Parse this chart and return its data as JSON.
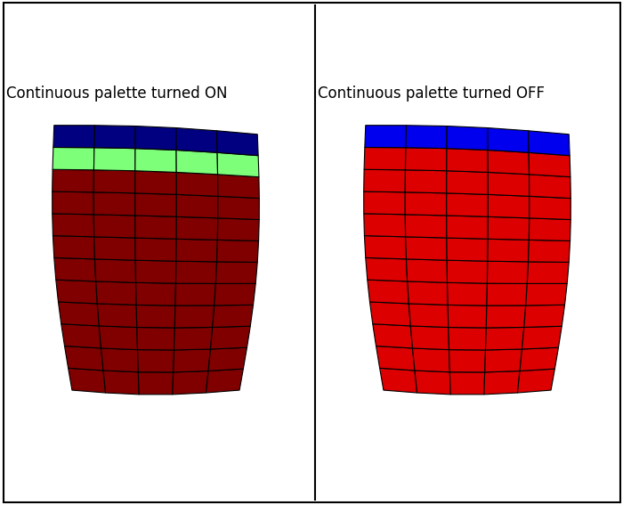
{
  "title_left": "Continuous palette turned ON",
  "title_right": "Continuous palette turned OFF",
  "title_fontsize": 12,
  "background_color": "#ffffff",
  "grid_color": "#000000",
  "grid_linewidth": 0.8,
  "n_cols": 5,
  "n_rows": 12,
  "colormap": "jet",
  "red_color": "#dd0000",
  "blue_color": "#0000ee",
  "border_color": "#000000",
  "border_linewidth": 1.5
}
